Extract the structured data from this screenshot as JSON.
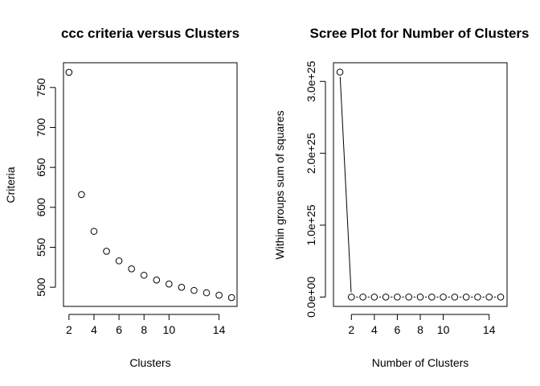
{
  "chart_data": [
    {
      "type": "scatter",
      "title": "ccc  criteria  versus Clusters",
      "xlabel": "Clusters",
      "ylabel": "Criteria",
      "xlim": [
        1.56,
        15.44
      ],
      "ylim": [
        476,
        781
      ],
      "xticks": [
        2,
        4,
        6,
        8,
        10,
        14
      ],
      "xtick_labels": [
        "2",
        "4",
        "6",
        "8",
        "10",
        "14"
      ],
      "yticks": [
        500,
        550,
        600,
        650,
        700,
        750
      ],
      "ytick_labels": [
        "500",
        "550",
        "600",
        "650",
        "700",
        "750"
      ],
      "grid": false,
      "series": [
        {
          "line": false,
          "x": [
            2,
            3,
            4,
            5,
            6,
            7,
            8,
            9,
            10,
            11,
            12,
            13,
            14,
            15
          ],
          "y": [
            769,
            616,
            570,
            545,
            533,
            523,
            515,
            509,
            504,
            500,
            496,
            493,
            490,
            487
          ]
        }
      ]
    },
    {
      "type": "line",
      "title": "Scree Plot for Number of Clusters",
      "xlabel": "Number of Clusters",
      "ylabel": "Within groups sum of squares",
      "xlim": [
        0.44,
        15.56
      ],
      "ylim": [
        -1.3e+24,
        3.26e+25
      ],
      "xticks": [
        2,
        4,
        6,
        8,
        10,
        14
      ],
      "xtick_labels": [
        "2",
        "4",
        "6",
        "8",
        "10",
        "14"
      ],
      "yticks": [
        0,
        1e+25,
        2e+25,
        3e+25
      ],
      "ytick_labels": [
        "0.0e+00",
        "1.0e+25",
        "2.0e+25",
        "3.0e+25"
      ],
      "grid": false,
      "series": [
        {
          "line": true,
          "markers": true,
          "x": [
            1,
            2,
            3,
            4,
            5,
            6,
            7,
            8,
            9,
            10,
            11,
            12,
            13,
            14,
            15
          ],
          "y": [
            3.13e+25,
            0,
            0,
            0,
            0,
            0,
            0,
            0,
            0,
            0,
            0,
            0,
            0,
            0,
            0
          ]
        }
      ]
    }
  ]
}
